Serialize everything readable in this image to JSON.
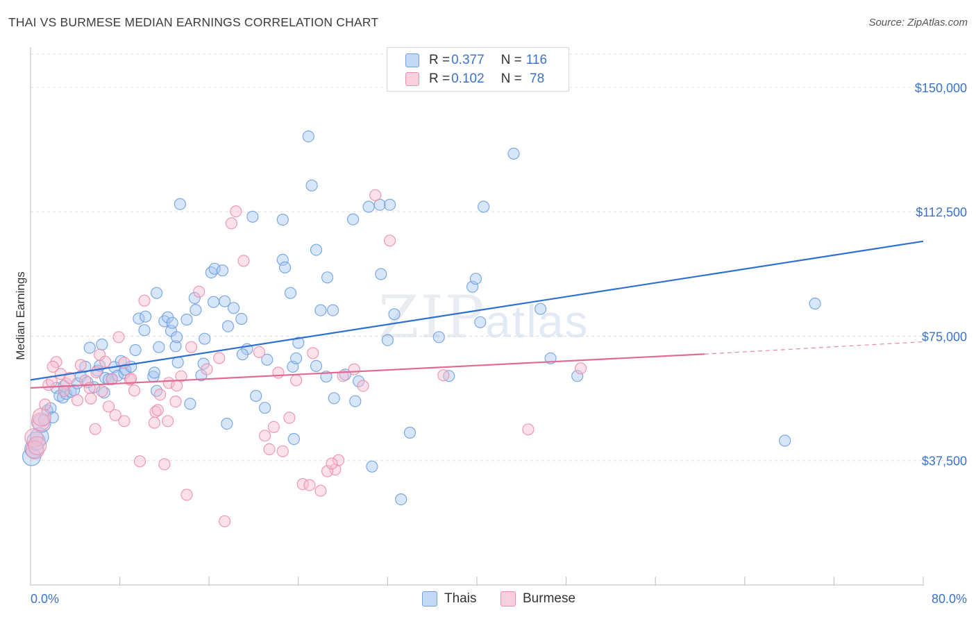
{
  "title": "THAI VS BURMESE MEDIAN EARNINGS CORRELATION CHART",
  "source": "Source: ZipAtlas.com",
  "watermark": {
    "zip": "ZIP",
    "atlas": "atlas"
  },
  "legend": {
    "rows": [
      {
        "r_label": "R = ",
        "r_value": "0.377",
        "n_label": "N = ",
        "n_value": "116",
        "color": "#a9c8f2"
      },
      {
        "r_label": "R = ",
        "r_value": "0.102",
        "n_label": "N = ",
        "n_value": " 78",
        "color": "#f7bdd0"
      }
    ]
  },
  "bottom_legend": {
    "thais": "Thais",
    "burmese": "Burmese"
  },
  "chart_data": {
    "type": "scatter",
    "title": "THAI VS BURMESE MEDIAN EARNINGS CORRELATION CHART",
    "xlabel": "",
    "ylabel": "Median Earnings",
    "xlim": [
      0,
      80
    ],
    "ylim": [
      0,
      160000
    ],
    "x_tick_labels": [
      "0.0%",
      "80.0%"
    ],
    "y_ticks": [
      37500,
      75000,
      112500,
      150000
    ],
    "y_tick_labels": [
      "$37,500",
      "$75,000",
      "$112,500",
      "$150,000"
    ],
    "grid": "horizontal dashed",
    "legend_placement": "top-center",
    "series": [
      {
        "name": "Thais",
        "color": "#6fa0e0",
        "fill": "#a9c8f2",
        "trend": {
          "x": [
            0,
            80
          ],
          "y": [
            61800,
            103600
          ],
          "style": "solid"
        },
        "points": [
          [
            0.1,
            38700
          ],
          [
            0.3,
            41000
          ],
          [
            0.5,
            43400
          ],
          [
            0.8,
            44700
          ],
          [
            1.0,
            48800
          ],
          [
            1.2,
            49800
          ],
          [
            1.5,
            52600
          ],
          [
            1.8,
            53300
          ],
          [
            2.0,
            50500
          ],
          [
            2.3,
            59400
          ],
          [
            2.6,
            57000
          ],
          [
            2.9,
            56500
          ],
          [
            3.2,
            57600
          ],
          [
            3.6,
            58200
          ],
          [
            3.9,
            58700
          ],
          [
            4.2,
            60800
          ],
          [
            4.5,
            62900
          ],
          [
            4.9,
            65800
          ],
          [
            5.1,
            61100
          ],
          [
            5.3,
            71500
          ],
          [
            5.7,
            59600
          ],
          [
            6.0,
            64600
          ],
          [
            6.2,
            66100
          ],
          [
            6.4,
            72500
          ],
          [
            6.7,
            62400
          ],
          [
            7.0,
            62000
          ],
          [
            7.3,
            62100
          ],
          [
            7.5,
            65700
          ],
          [
            7.8,
            63100
          ],
          [
            8.1,
            67500
          ],
          [
            8.4,
            63800
          ],
          [
            8.5,
            64900
          ],
          [
            9.0,
            65800
          ],
          [
            9.4,
            70800
          ],
          [
            9.7,
            80300
          ],
          [
            10.2,
            76800
          ],
          [
            10.3,
            80900
          ],
          [
            11.0,
            62800
          ],
          [
            11.1,
            64000
          ],
          [
            11.3,
            58500
          ],
          [
            11.5,
            71700
          ],
          [
            11.3,
            88000
          ],
          [
            12.0,
            79500
          ],
          [
            12.3,
            80700
          ],
          [
            12.6,
            76600
          ],
          [
            13.0,
            72000
          ],
          [
            13.1,
            74700
          ],
          [
            13.2,
            67100
          ],
          [
            13.4,
            114800
          ],
          [
            14.0,
            80000
          ],
          [
            14.3,
            54600
          ],
          [
            14.7,
            86500
          ],
          [
            14.8,
            82900
          ],
          [
            15.3,
            63200
          ],
          [
            15.5,
            66700
          ],
          [
            15.6,
            74200
          ],
          [
            16.2,
            94200
          ],
          [
            16.5,
            95300
          ],
          [
            16.4,
            85300
          ],
          [
            17.2,
            94800
          ],
          [
            17.4,
            85500
          ],
          [
            17.7,
            78000
          ],
          [
            17.6,
            48600
          ],
          [
            18.2,
            83500
          ],
          [
            18.9,
            80200
          ],
          [
            19.4,
            71100
          ],
          [
            19.9,
            111000
          ],
          [
            20.2,
            57000
          ],
          [
            21.0,
            53400
          ],
          [
            21.2,
            67900
          ],
          [
            22.6,
            110100
          ],
          [
            22.6,
            98000
          ],
          [
            22.8,
            95700
          ],
          [
            23.3,
            88000
          ],
          [
            23.5,
            65800
          ],
          [
            23.6,
            44000
          ],
          [
            23.8,
            68300
          ],
          [
            24.9,
            135200
          ],
          [
            25.2,
            120400
          ],
          [
            25.6,
            101000
          ],
          [
            25.6,
            66000
          ],
          [
            26.0,
            82800
          ],
          [
            26.5,
            62800
          ],
          [
            26.6,
            92700
          ],
          [
            27.1,
            82800
          ],
          [
            27.2,
            56300
          ],
          [
            28.2,
            63400
          ],
          [
            28.9,
            110200
          ],
          [
            29.1,
            55400
          ],
          [
            29.4,
            61400
          ],
          [
            30.3,
            114000
          ],
          [
            30.6,
            35700
          ],
          [
            31.3,
            114600
          ],
          [
            31.4,
            93700
          ],
          [
            32.0,
            73800
          ],
          [
            32.2,
            114600
          ],
          [
            32.6,
            81600
          ],
          [
            33.2,
            25800
          ],
          [
            34.0,
            45900
          ],
          [
            36.6,
            74700
          ],
          [
            37.5,
            63000
          ],
          [
            39.6,
            89900
          ],
          [
            39.9,
            92300
          ],
          [
            40.3,
            79200
          ],
          [
            40.6,
            114000
          ],
          [
            43.3,
            130000
          ],
          [
            45.7,
            83200
          ],
          [
            46.6,
            68300
          ],
          [
            70.3,
            84800
          ],
          [
            67.6,
            43500
          ],
          [
            49.0,
            63000
          ],
          [
            24.0,
            73000
          ],
          [
            19.0,
            69500
          ],
          [
            12.7,
            79000
          ],
          [
            6.6,
            58000
          ],
          [
            3.0,
            60000
          ]
        ]
      },
      {
        "name": "Burmese",
        "color": "#ec8faa",
        "fill": "#f7bdd0",
        "trend": {
          "x": [
            0,
            60.4
          ],
          "y": [
            59400,
            69600
          ],
          "style": "solid",
          "extension": {
            "x": [
              60.4,
              80
            ],
            "y": [
              69600,
              73300
            ],
            "style": "dashed"
          }
        },
        "points": [
          [
            0.3,
            44400
          ],
          [
            0.4,
            40700
          ],
          [
            0.6,
            42000
          ],
          [
            0.9,
            49200
          ],
          [
            1.0,
            50600
          ],
          [
            1.3,
            54400
          ],
          [
            1.6,
            60300
          ],
          [
            1.9,
            61300
          ],
          [
            2.3,
            67200
          ],
          [
            2.7,
            63600
          ],
          [
            3.2,
            60700
          ],
          [
            3.5,
            62400
          ],
          [
            4.2,
            55700
          ],
          [
            4.5,
            66300
          ],
          [
            4.9,
            61600
          ],
          [
            5.3,
            59400
          ],
          [
            5.8,
            47000
          ],
          [
            5.9,
            64100
          ],
          [
            6.2,
            69400
          ],
          [
            6.4,
            58400
          ],
          [
            6.7,
            67300
          ],
          [
            7.3,
            62000
          ],
          [
            7.6,
            51200
          ],
          [
            7.9,
            74700
          ],
          [
            8.4,
            67000
          ],
          [
            8.4,
            49400
          ],
          [
            8.9,
            61900
          ],
          [
            9.0,
            62200
          ],
          [
            9.3,
            58600
          ],
          [
            9.8,
            37300
          ],
          [
            10.2,
            85700
          ],
          [
            11.1,
            48900
          ],
          [
            11.2,
            52200
          ],
          [
            11.4,
            52700
          ],
          [
            11.6,
            57400
          ],
          [
            12.0,
            36400
          ],
          [
            12.3,
            49400
          ],
          [
            12.4,
            60900
          ],
          [
            13.0,
            55300
          ],
          [
            13.1,
            60100
          ],
          [
            13.5,
            62900
          ],
          [
            14.0,
            27200
          ],
          [
            14.4,
            71700
          ],
          [
            15.1,
            88400
          ],
          [
            15.8,
            65000
          ],
          [
            16.9,
            68400
          ],
          [
            17.4,
            19200
          ],
          [
            18.4,
            112600
          ],
          [
            19.1,
            97700
          ],
          [
            20.5,
            70200
          ],
          [
            21.4,
            40900
          ],
          [
            21.8,
            47600
          ],
          [
            22.2,
            64000
          ],
          [
            22.6,
            40300
          ],
          [
            23.2,
            50400
          ],
          [
            23.8,
            61700
          ],
          [
            24.4,
            30400
          ],
          [
            25.0,
            30100
          ],
          [
            25.3,
            69900
          ],
          [
            26.0,
            28400
          ],
          [
            27.3,
            34800
          ],
          [
            27.6,
            37600
          ],
          [
            28.0,
            63000
          ],
          [
            29.0,
            65000
          ],
          [
            29.8,
            60000
          ],
          [
            30.9,
            117500
          ],
          [
            32.2,
            103800
          ],
          [
            37.0,
            63200
          ],
          [
            44.6,
            46900
          ],
          [
            49.3,
            65300
          ],
          [
            18.0,
            109000
          ],
          [
            26.6,
            34300
          ],
          [
            5.4,
            56200
          ],
          [
            2.0,
            65800
          ],
          [
            7.0,
            53800
          ],
          [
            3.0,
            58500
          ],
          [
            27.0,
            36600
          ],
          [
            21.0,
            45000
          ]
        ]
      }
    ]
  }
}
